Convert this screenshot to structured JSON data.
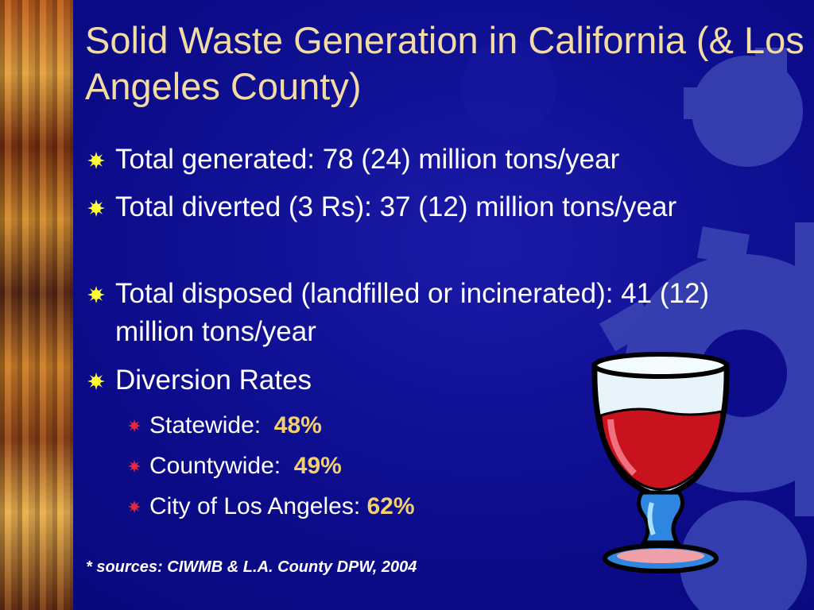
{
  "title": "Solid Waste Generation in California (& Los Angeles County)",
  "bullets": [
    {
      "text": "Total generated: 78 (24) million tons/year"
    },
    {
      "text": "Total diverted (3 Rs): 37 (12) million tons/year"
    },
    {
      "text": "Total disposed (landfilled or incinerated): 41 (12) million tons/year"
    },
    {
      "text": "Diversion Rates"
    }
  ],
  "sub_bullets": [
    {
      "label": "Statewide:",
      "value": "48%"
    },
    {
      "label": "Countywide:",
      "value": "49%"
    },
    {
      "label": "City of Los Angeles:",
      "value": "62%"
    }
  ],
  "footnote": "* sources: CIWMB & L.A. County DPW, 2004"
}
